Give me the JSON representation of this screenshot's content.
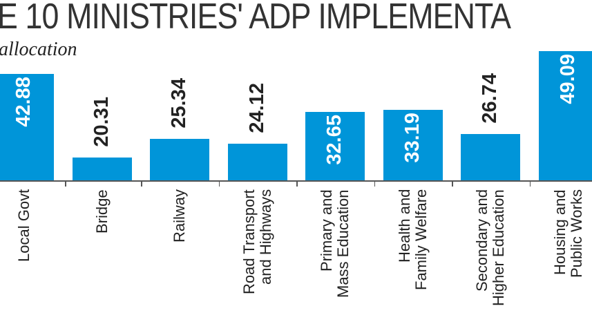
{
  "chart_data": {
    "type": "bar",
    "title": "E 10 MINISTRIES' ADP IMPLEMENTA",
    "subtitle": "allocation",
    "categories": [
      "Local Govt",
      "Bridge",
      "Railway",
      "Road Transport\nand Highways",
      "Primary and\nMass Education",
      "Health and\nFamily Welfare",
      "Secondary and\nHigher Education",
      "Housing and\nPublic Works"
    ],
    "values": [
      42.88,
      20.31,
      25.34,
      24.12,
      32.65,
      33.19,
      26.74,
      49.09
    ],
    "value_labels": [
      "42.88",
      "20.31",
      "25.34",
      "24.12",
      "32.65",
      "33.19",
      "26.74",
      "49.09"
    ],
    "ylim": [
      14.15,
      60
    ],
    "grid": false,
    "colors": {
      "bar": "#0095d9",
      "label_inside": "#ffffff",
      "label_outside": "#222222"
    }
  }
}
